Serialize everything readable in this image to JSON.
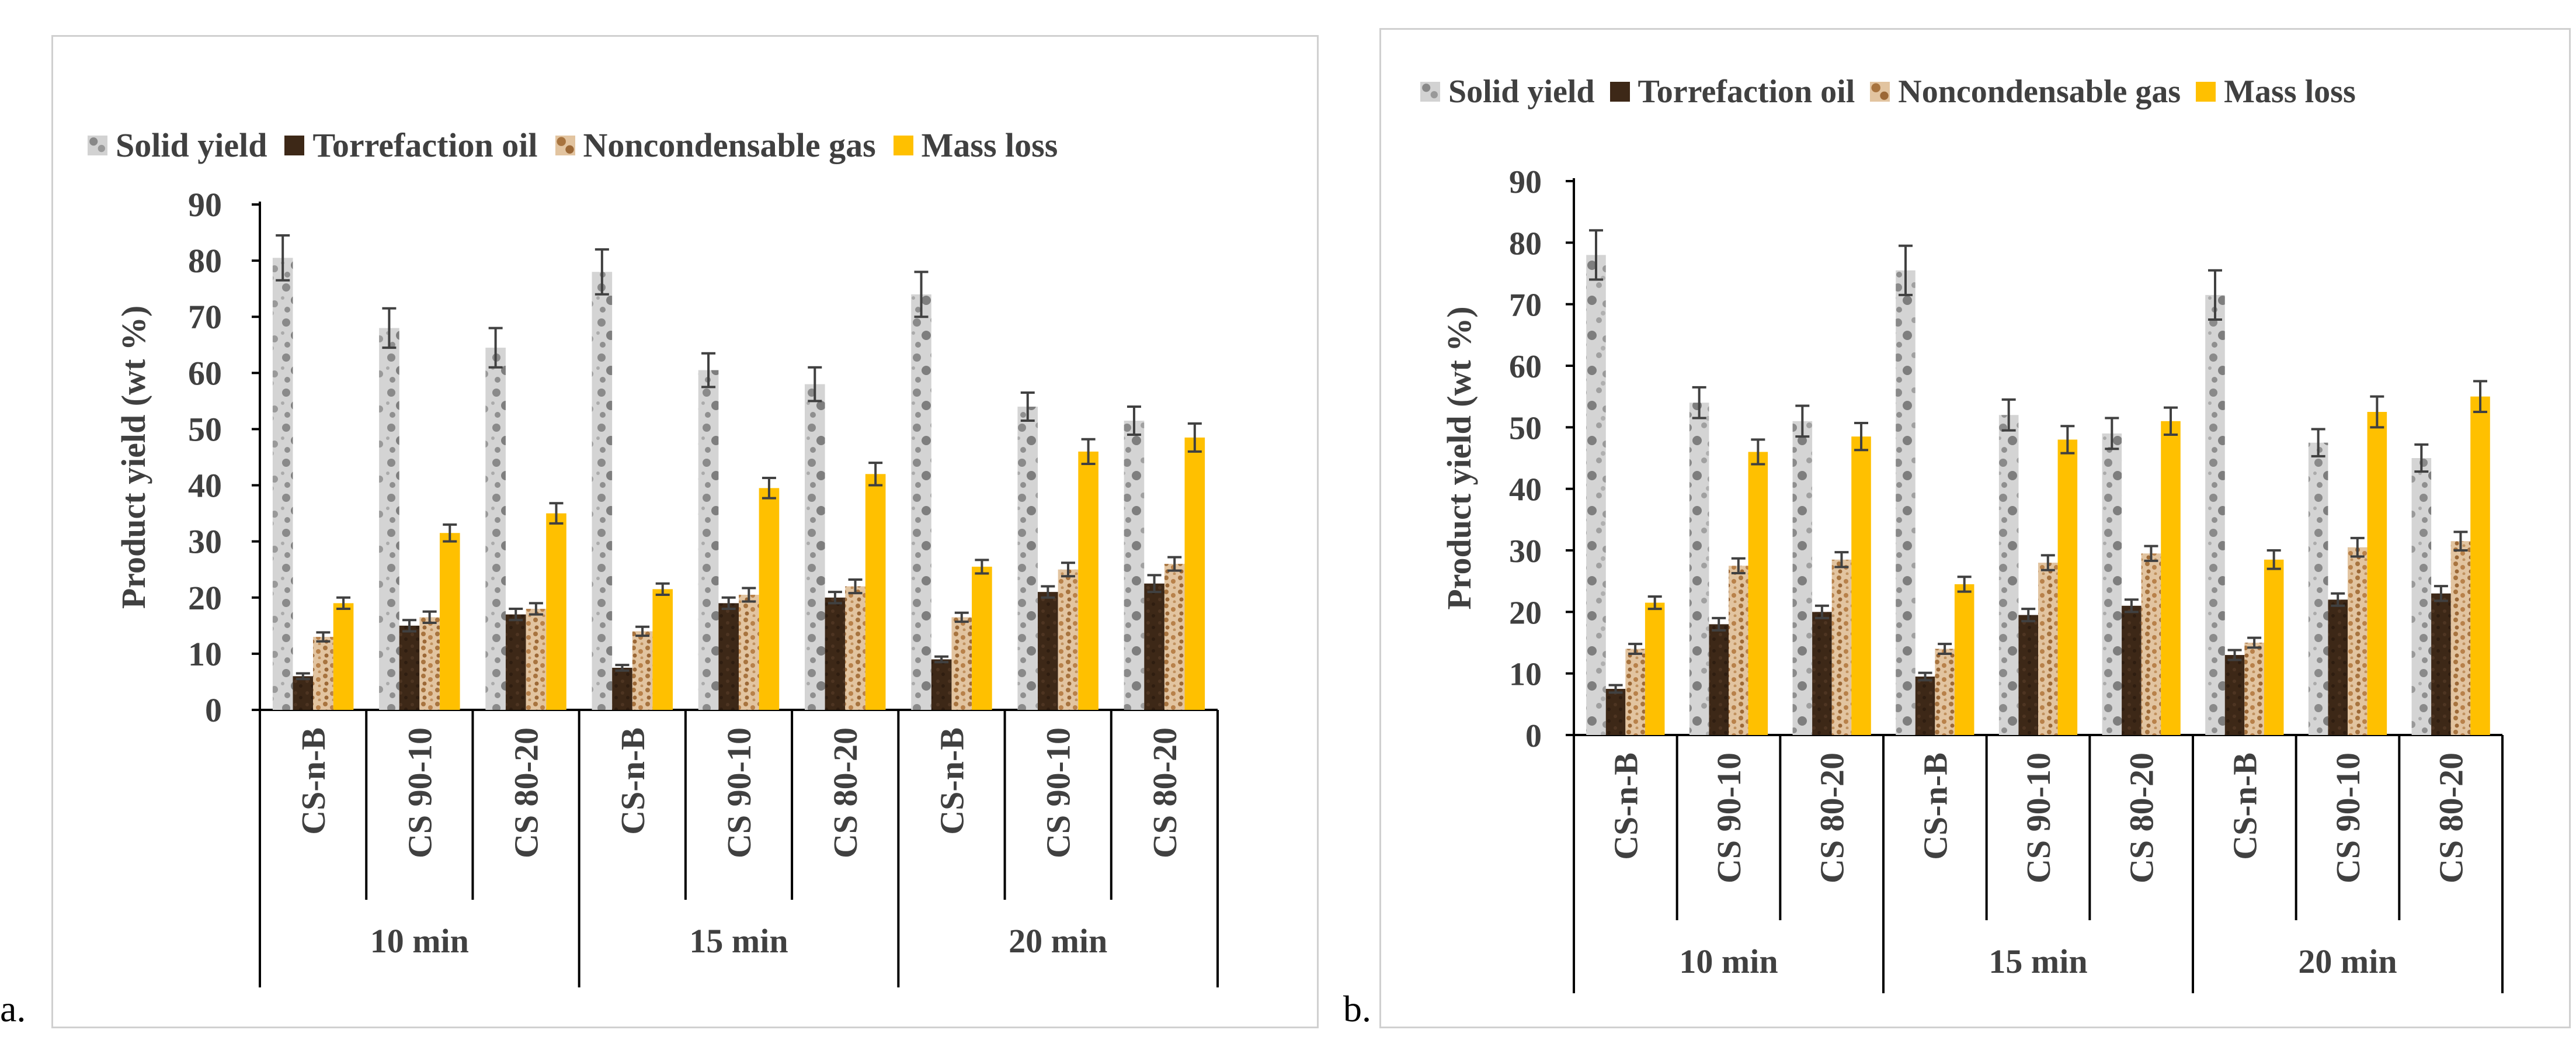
{
  "chart_data": [
    {
      "type": "bar",
      "panel": "a.",
      "ylabel": "Product yield (wt %)",
      "ylim": [
        0,
        90
      ],
      "yticks": [
        0,
        10,
        20,
        30,
        40,
        50,
        60,
        70,
        80,
        90
      ],
      "categories": [
        "CS-n-B",
        "CS 90-10",
        "CS 80-20",
        "CS-n-B",
        "CS 90-10",
        "CS 80-20",
        "CS-n-B",
        "CS 90-10",
        "CS 80-20"
      ],
      "groups": [
        "10 min",
        "15 min",
        "20 min"
      ],
      "legend_position": "top",
      "series": [
        {
          "name": "Solid yield",
          "values": [
            80.5,
            68,
            64.5,
            78,
            60.5,
            58,
            74,
            54,
            51.5
          ],
          "errors": [
            4,
            3.5,
            3.5,
            4,
            3,
            3,
            4,
            2.5,
            2.5
          ]
        },
        {
          "name": "Torrefaction oil",
          "values": [
            6,
            15,
            17,
            7.5,
            19,
            20,
            9,
            21,
            22.5
          ],
          "errors": [
            0.5,
            1,
            1,
            0.5,
            1,
            1,
            0.5,
            1,
            1.5
          ]
        },
        {
          "name": "Noncondensable gas",
          "values": [
            13,
            16.5,
            18,
            14,
            20.5,
            22,
            16.5,
            25,
            26
          ],
          "errors": [
            0.8,
            1,
            1,
            0.8,
            1.2,
            1.2,
            0.8,
            1.2,
            1.2
          ]
        },
        {
          "name": "Mass loss",
          "values": [
            19,
            31.5,
            35,
            21.5,
            39.5,
            42,
            25.5,
            46,
            48.5
          ],
          "errors": [
            1,
            1.5,
            1.8,
            1,
            1.8,
            2,
            1.2,
            2.2,
            2.5
          ]
        }
      ]
    },
    {
      "type": "bar",
      "panel": "b.",
      "ylabel": "Product yield (wt %)",
      "ylim": [
        0,
        90
      ],
      "yticks": [
        0,
        10,
        20,
        30,
        40,
        50,
        60,
        70,
        80,
        90
      ],
      "categories": [
        "CS-n-B",
        "CS 90-10",
        "CS 80-20",
        "CS-n-B",
        "CS 90-10",
        "CS 80-20",
        "CS-n-B",
        "CS 90-10",
        "CS 80-20"
      ],
      "groups": [
        "10 min",
        "15 min",
        "20 min"
      ],
      "legend_position": "top",
      "series": [
        {
          "name": "Solid yield",
          "values": [
            78,
            54,
            51,
            75.5,
            52,
            49,
            71.5,
            47.5,
            45
          ],
          "errors": [
            4,
            2.5,
            2.5,
            4,
            2.5,
            2.5,
            4,
            2.2,
            2.2
          ]
        },
        {
          "name": "Torrefaction oil",
          "values": [
            7.5,
            18,
            20,
            9.5,
            19.5,
            21,
            13,
            22,
            23
          ],
          "errors": [
            0.6,
            1,
            1,
            0.6,
            1,
            1,
            0.8,
            1,
            1.2
          ]
        },
        {
          "name": "Noncondensable gas",
          "values": [
            14,
            27.5,
            28.5,
            14,
            28,
            29.5,
            15,
            30.5,
            31.5
          ],
          "errors": [
            0.8,
            1.2,
            1.2,
            0.8,
            1.2,
            1.2,
            0.8,
            1.5,
            1.5
          ]
        },
        {
          "name": "Mass loss",
          "values": [
            21.5,
            46,
            48.5,
            24.5,
            48,
            51,
            28.5,
            52.5,
            55
          ],
          "errors": [
            1,
            2,
            2.2,
            1.2,
            2.2,
            2.2,
            1.5,
            2.5,
            2.5
          ]
        }
      ]
    }
  ],
  "series_colors": [
    "#b8b8b8",
    "#3d2817",
    "#c69a6a",
    "#ffc000"
  ]
}
